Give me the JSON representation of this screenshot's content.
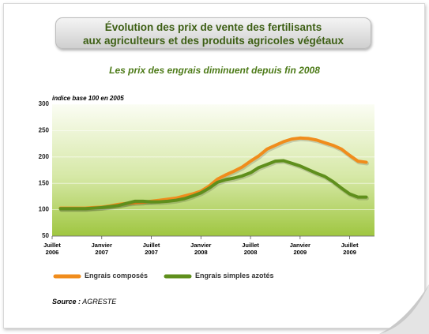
{
  "chart_data": {
    "type": "line",
    "title": "Évolution des prix de vente des fertilisants\naux agriculteurs et des produits agricoles végétaux",
    "subtitle": "Les prix des engrais diminuent depuis fin 2008",
    "y_label": "indice base 100 en 2005",
    "source_label": "Source :",
    "source": "AGRESTE",
    "x": [
      "2006-08",
      "2006-09",
      "2006-10",
      "2006-11",
      "2006-12",
      "2007-01",
      "2007-02",
      "2007-03",
      "2007-04",
      "2007-05",
      "2007-06",
      "2007-07",
      "2007-08",
      "2007-09",
      "2007-10",
      "2007-11",
      "2007-12",
      "2008-01",
      "2008-02",
      "2008-03",
      "2008-04",
      "2008-05",
      "2008-06",
      "2008-07",
      "2008-08",
      "2008-09",
      "2008-10",
      "2008-11",
      "2008-12",
      "2009-01",
      "2009-02",
      "2009-03",
      "2009-04",
      "2009-05",
      "2009-06",
      "2009-07",
      "2009-08",
      "2009-09"
    ],
    "series": [
      {
        "name": "Engrais composés",
        "color": "#f08c1c",
        "values": [
          103,
          103,
          103,
          103,
          104,
          105,
          107,
          110,
          112,
          113,
          114,
          116,
          118,
          120,
          122,
          126,
          130,
          135,
          145,
          158,
          166,
          173,
          181,
          192,
          202,
          215,
          222,
          229,
          234,
          236,
          235,
          232,
          227,
          222,
          215,
          203,
          192,
          190
        ]
      },
      {
        "name": "Engrais simples azotés",
        "color": "#5f8f1c",
        "values": [
          102,
          102,
          102,
          102,
          103,
          104,
          106,
          108,
          112,
          116,
          116,
          115,
          115,
          116,
          118,
          121,
          126,
          132,
          141,
          152,
          157,
          160,
          164,
          170,
          180,
          186,
          192,
          193,
          188,
          183,
          176,
          169,
          163,
          153,
          141,
          130,
          124,
          124
        ]
      }
    ],
    "xlim": [
      "2006-07",
      "2009-10"
    ],
    "xticks": [
      {
        "value": "2006-07",
        "label": "Juillet 2006"
      },
      {
        "value": "2007-01",
        "label": "Janvier 2007"
      },
      {
        "value": "2007-07",
        "label": "Juillet 2007"
      },
      {
        "value": "2008-01",
        "label": "Janvier 2008"
      },
      {
        "value": "2008-07",
        "label": "Juillet 2008"
      },
      {
        "value": "2009-01",
        "label": "Janvier 2009"
      },
      {
        "value": "2009-07",
        "label": "Juillet 2009"
      }
    ],
    "ylim": [
      50,
      300
    ],
    "yticks": [
      50,
      100,
      150,
      200,
      250,
      300
    ],
    "grid": true
  }
}
